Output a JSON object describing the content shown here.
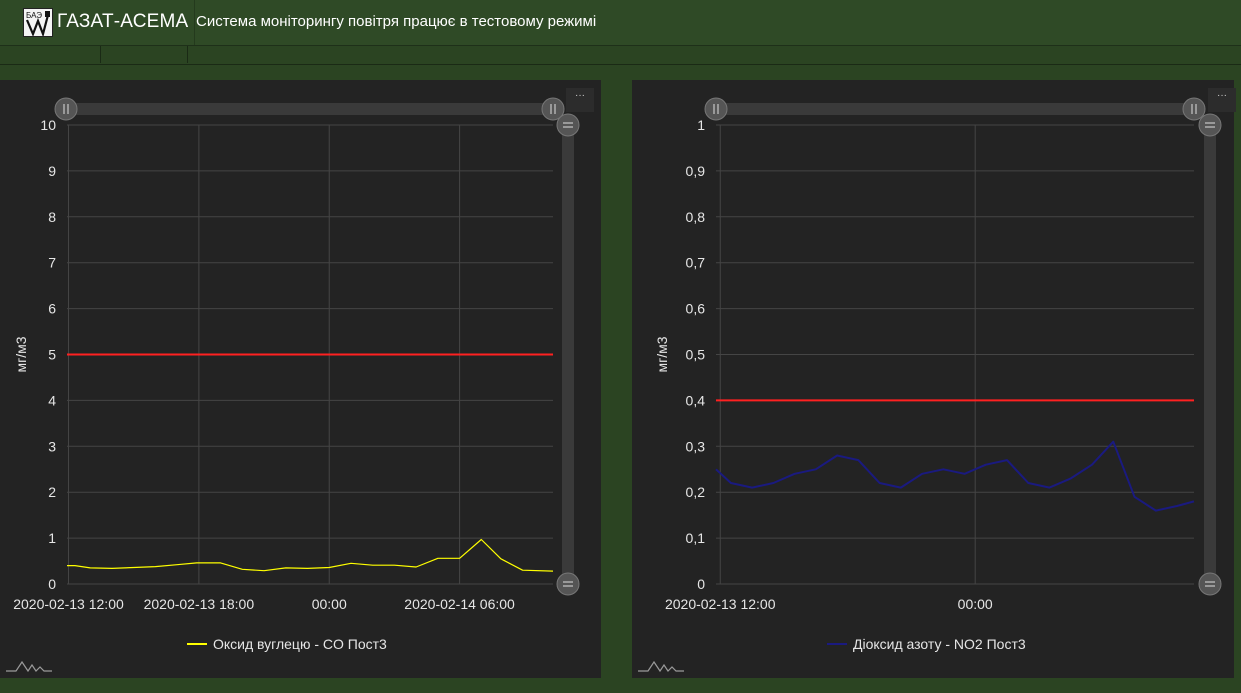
{
  "header": {
    "brand_name": "ГАЗАТ-АСЕМА",
    "status_message": "Система моніторингу повітря працює в тестовому режимі",
    "logo_icon": "gazat-logo-icon"
  },
  "colors": {
    "background": "#2b4422",
    "panel": "#232323",
    "grid": "#444444",
    "limit_line": "#ff2020",
    "co_series": "#ffff00",
    "no2_series": "#1a1a80"
  },
  "panels": [
    {
      "menu_label": "···",
      "legend_label": "Оксид вуглецю - CO Пост3",
      "ylabel": "мг/м3"
    },
    {
      "menu_label": "···",
      "legend_label": "Діоксид азоту - NO2 Пост3",
      "ylabel": "мг/м3"
    }
  ],
  "chart_data": [
    {
      "type": "line",
      "ylabel": "мг/м3",
      "ylim": [
        0,
        10
      ],
      "yticks": [
        "0",
        "1",
        "2",
        "3",
        "4",
        "5",
        "6",
        "7",
        "8",
        "9",
        "10"
      ],
      "xticks": [
        "2020-02-13 12:00",
        "2020-02-13 18:00",
        "00:00",
        "2020-02-14 06:00"
      ],
      "xtick_hours": [
        0,
        6,
        12,
        18
      ],
      "xlim_hours": [
        -0.07,
        22.3
      ],
      "grid": true,
      "legend_position": "bottom",
      "limit": 5,
      "series": [
        {
          "name": "Оксид вуглецю - CO Пост3",
          "x_hours": [
            -0.07,
            0.3,
            1.0,
            2.0,
            3.0,
            4.0,
            5.0,
            5.9,
            7.0,
            8.0,
            9.0,
            10.0,
            11.0,
            12.0,
            13.0,
            14.0,
            15.0,
            16.0,
            17.0,
            18.0,
            19.0,
            19.9,
            20.9,
            22.3
          ],
          "values": [
            0.4,
            0.4,
            0.35,
            0.34,
            0.36,
            0.38,
            0.42,
            0.46,
            0.46,
            0.32,
            0.29,
            0.35,
            0.34,
            0.36,
            0.45,
            0.41,
            0.41,
            0.37,
            0.56,
            0.56,
            0.97,
            0.55,
            0.3,
            0.28
          ]
        }
      ]
    },
    {
      "type": "line",
      "ylabel": "мг/м3",
      "ylim": [
        0,
        1
      ],
      "yticks": [
        "0",
        "0,1",
        "0,2",
        "0,3",
        "0,4",
        "0,5",
        "0,6",
        "0,7",
        "0,8",
        "0,9",
        "1"
      ],
      "xticks": [
        "2020-02-13 12:00",
        "00:00"
      ],
      "xtick_hours": [
        0,
        12
      ],
      "xlim_hours": [
        -0.2,
        22.3
      ],
      "grid": true,
      "legend_position": "bottom",
      "limit": 0.4,
      "series": [
        {
          "name": "Діоксид азоту - NO2 Пост3",
          "x_hours": [
            -0.2,
            0.5,
            1.5,
            2.5,
            3.5,
            4.5,
            5.5,
            6.5,
            7.5,
            8.5,
            9.5,
            10.5,
            11.5,
            12.5,
            13.5,
            14.5,
            15.5,
            16.5,
            17.5,
            18.5,
            19.5,
            20.5,
            21.5,
            22.3
          ],
          "values": [
            0.25,
            0.22,
            0.21,
            0.22,
            0.24,
            0.25,
            0.28,
            0.27,
            0.22,
            0.21,
            0.24,
            0.25,
            0.24,
            0.26,
            0.27,
            0.22,
            0.21,
            0.23,
            0.26,
            0.31,
            0.19,
            0.16,
            0.17,
            0.18
          ]
        }
      ]
    }
  ]
}
